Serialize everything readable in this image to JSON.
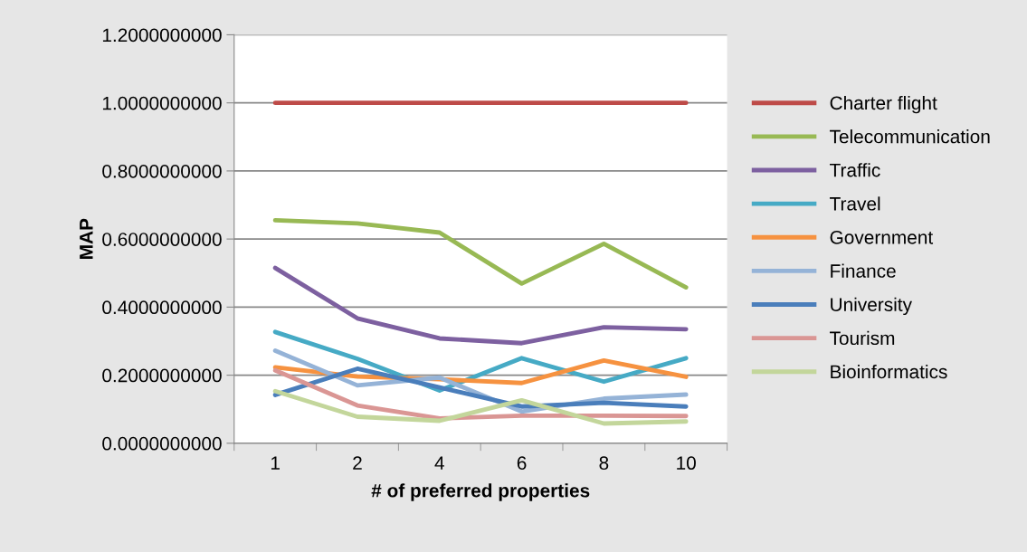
{
  "chart_data": {
    "type": "line",
    "xlabel": "# of preferred properties",
    "ylabel": "MAP",
    "categories": [
      "1",
      "2",
      "4",
      "6",
      "8",
      "10"
    ],
    "series": [
      {
        "name": "Charter flight",
        "color": "#be4b48",
        "values": [
          1.0,
          1.0,
          1.0,
          1.0,
          1.0,
          1.0
        ]
      },
      {
        "name": "Telecommunication",
        "color": "#98b954",
        "values": [
          0.655,
          0.646,
          0.619,
          0.469,
          0.586,
          0.458
        ]
      },
      {
        "name": "Traffic",
        "color": "#7d60a0",
        "values": [
          0.515,
          0.367,
          0.308,
          0.294,
          0.341,
          0.335
        ]
      },
      {
        "name": "Travel",
        "color": "#46aac5",
        "values": [
          0.327,
          0.248,
          0.155,
          0.25,
          0.181,
          0.25
        ]
      },
      {
        "name": "Government",
        "color": "#f69240",
        "values": [
          0.223,
          0.196,
          0.188,
          0.177,
          0.243,
          0.195
        ]
      },
      {
        "name": "Finance",
        "color": "#95b3d7",
        "values": [
          0.272,
          0.17,
          0.193,
          0.093,
          0.131,
          0.143
        ]
      },
      {
        "name": "University",
        "color": "#4a7ebb",
        "values": [
          0.142,
          0.219,
          0.164,
          0.108,
          0.119,
          0.108
        ]
      },
      {
        "name": "Tourism",
        "color": "#da9694",
        "values": [
          0.214,
          0.111,
          0.073,
          0.081,
          0.081,
          0.08
        ]
      },
      {
        "name": "Bioinformatics",
        "color": "#c3d69b",
        "values": [
          0.153,
          0.078,
          0.066,
          0.126,
          0.058,
          0.064
        ]
      }
    ],
    "ylim": [
      0,
      1.2
    ],
    "yticks": [
      {
        "value": 0,
        "label": "0.0000000000"
      },
      {
        "value": 0.2,
        "label": "0.2000000000"
      },
      {
        "value": 0.4,
        "label": "0.4000000000"
      },
      {
        "value": 0.6,
        "label": "0.6000000000"
      },
      {
        "value": 0.8,
        "label": "0.8000000000"
      },
      {
        "value": 1.0,
        "label": "1.0000000000"
      },
      {
        "value": 1.2,
        "label": "1.2000000000"
      }
    ],
    "grid": "y",
    "legend": "right",
    "marker": "none",
    "line_style": "solid"
  }
}
